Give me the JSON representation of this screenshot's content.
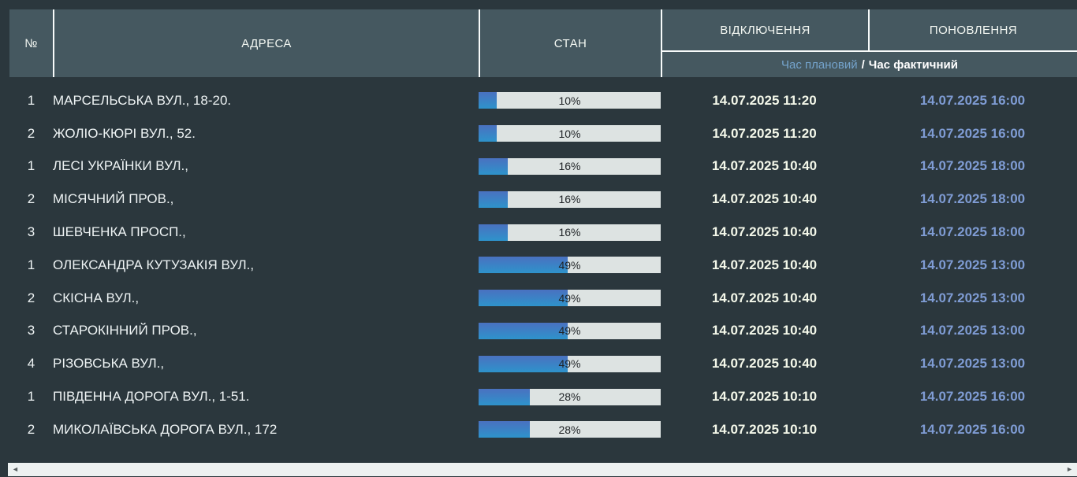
{
  "header": {
    "number": "№",
    "address": "АДРЕСА",
    "state": "СТАН",
    "outage": "ВІДКЛЮЧЕННЯ",
    "restore": "ПОНОВЛЕННЯ",
    "time_planned": "Час плановий",
    "time_separator": "/",
    "time_actual": "Час фактичний"
  },
  "colors": {
    "page-bg": "#2b373d",
    "header-bg": "#455860",
    "divider": "#f8fbfb",
    "header-text": "#f3f7f2",
    "planned-text": "#74a3cc",
    "actual-text": "#ffffff",
    "row-text": "#eef3f4",
    "off-text": "#f4f8ea",
    "renew-text": "#7f9cd4",
    "bar-track": "#dde3e2",
    "bar-fill-top": "#4a71c0",
    "bar-fill-bottom": "#2e93cb",
    "bar-text": "#1f2326",
    "scrollbar-track": "#edf1f1",
    "scrollbar-arrow": "#565d5f"
  },
  "rows": [
    {
      "num": "1",
      "address": "МАРСЕЛЬСЬКА ВУЛ., 18-20.",
      "percent": 10,
      "percent_label": "10%",
      "outage_time": "14.07.2025 11:20",
      "restore_time": "14.07.2025 16:00"
    },
    {
      "num": "2",
      "address": "ЖОЛІО-КЮРІ ВУЛ., 52.",
      "percent": 10,
      "percent_label": "10%",
      "outage_time": "14.07.2025 11:20",
      "restore_time": "14.07.2025 16:00"
    },
    {
      "num": "1",
      "address": "ЛЕСІ УКРАЇНКИ ВУЛ.,",
      "percent": 16,
      "percent_label": "16%",
      "outage_time": "14.07.2025 10:40",
      "restore_time": "14.07.2025 18:00"
    },
    {
      "num": "2",
      "address": "МІСЯЧНИЙ ПРОВ.,",
      "percent": 16,
      "percent_label": "16%",
      "outage_time": "14.07.2025 10:40",
      "restore_time": "14.07.2025 18:00"
    },
    {
      "num": "3",
      "address": "ШЕВЧЕНКА ПРОСП.,",
      "percent": 16,
      "percent_label": "16%",
      "outage_time": "14.07.2025 10:40",
      "restore_time": "14.07.2025 18:00"
    },
    {
      "num": "1",
      "address": "ОЛЕКСАНДРА КУТУЗАКІЯ ВУЛ.,",
      "percent": 49,
      "percent_label": "49%",
      "outage_time": "14.07.2025 10:40",
      "restore_time": "14.07.2025 13:00"
    },
    {
      "num": "2",
      "address": "СКІСНА ВУЛ.,",
      "percent": 49,
      "percent_label": "49%",
      "outage_time": "14.07.2025 10:40",
      "restore_time": "14.07.2025 13:00"
    },
    {
      "num": "3",
      "address": "СТАРОКІННИЙ ПРОВ.,",
      "percent": 49,
      "percent_label": "49%",
      "outage_time": "14.07.2025 10:40",
      "restore_time": "14.07.2025 13:00"
    },
    {
      "num": "4",
      "address": "РІЗОВСЬКА ВУЛ.,",
      "percent": 49,
      "percent_label": "49%",
      "outage_time": "14.07.2025 10:40",
      "restore_time": "14.07.2025 13:00"
    },
    {
      "num": "1",
      "address": "ПІВДЕННА ДОРОГА ВУЛ., 1-51.",
      "percent": 28,
      "percent_label": "28%",
      "outage_time": "14.07.2025 10:10",
      "restore_time": "14.07.2025 16:00"
    },
    {
      "num": "2",
      "address": "МИКОЛАЇВСЬКА ДОРОГА ВУЛ., 172",
      "percent": 28,
      "percent_label": "28%",
      "outage_time": "14.07.2025 10:10",
      "restore_time": "14.07.2025 16:00"
    }
  ],
  "scrollbar": {
    "left_arrow_icon": "◄",
    "right_arrow_icon": "►"
  }
}
